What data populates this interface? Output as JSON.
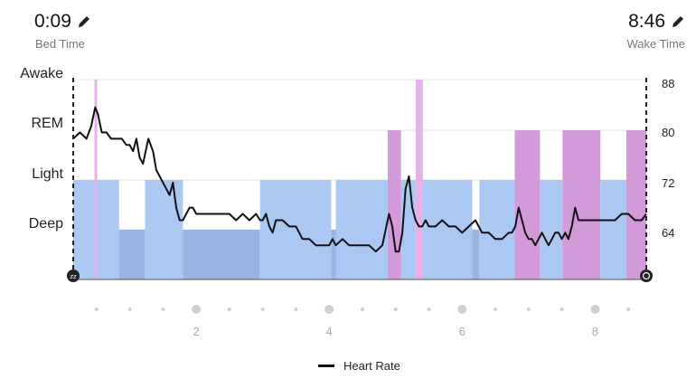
{
  "header": {
    "bed_time": "0:09",
    "bed_label": "Bed Time",
    "wake_time": "8:46",
    "wake_label": "Wake Time",
    "edit_icon": "pencil-icon"
  },
  "chart_data": {
    "type": "area",
    "stages": [
      "Awake",
      "REM",
      "Light",
      "Deep"
    ],
    "hr_ticks": [
      "88",
      "80",
      "72",
      "64"
    ],
    "hr_range": [
      56,
      88
    ],
    "x_range_hours": [
      0.15,
      8.77
    ],
    "x_tick_labels": [
      "2",
      "4",
      "6",
      "8"
    ],
    "x_ticks_hours": [
      2,
      4,
      6,
      8
    ],
    "x_minor_ticks_hours": [
      0.5,
      1.0,
      1.5,
      2.5,
      3.0,
      3.5,
      4.5,
      5.0,
      5.5,
      6.5,
      7.0,
      7.5,
      8.5
    ],
    "stage_colors": {
      "Light": "#aac8f2",
      "Deep": "#9ab4e2",
      "REM": "#d39ad9",
      "Awake": "#e3b2e6"
    },
    "stage_segments": [
      {
        "stage": "Light",
        "start": 0.15,
        "end": 0.84
      },
      {
        "stage": "Awake",
        "start": 0.47,
        "end": 0.51
      },
      {
        "stage": "Deep",
        "start": 0.84,
        "end": 1.23
      },
      {
        "stage": "Light",
        "start": 1.23,
        "end": 1.8
      },
      {
        "stage": "Deep",
        "start": 1.8,
        "end": 2.96
      },
      {
        "stage": "Light",
        "start": 2.96,
        "end": 4.03
      },
      {
        "stage": "Deep",
        "start": 4.03,
        "end": 4.1
      },
      {
        "stage": "Light",
        "start": 4.1,
        "end": 4.88
      },
      {
        "stage": "REM",
        "start": 4.88,
        "end": 5.08
      },
      {
        "stage": "Light",
        "start": 5.08,
        "end": 5.3
      },
      {
        "stage": "Awake",
        "start": 5.3,
        "end": 5.41
      },
      {
        "stage": "Light",
        "start": 5.41,
        "end": 6.15
      },
      {
        "stage": "Deep",
        "start": 6.15,
        "end": 6.26
      },
      {
        "stage": "Light",
        "start": 6.26,
        "end": 6.79
      },
      {
        "stage": "REM",
        "start": 6.79,
        "end": 7.17
      },
      {
        "stage": "Light",
        "start": 7.17,
        "end": 7.51
      },
      {
        "stage": "REM",
        "start": 7.51,
        "end": 8.08
      },
      {
        "stage": "Light",
        "start": 8.08,
        "end": 8.47
      },
      {
        "stage": "REM",
        "start": 8.47,
        "end": 8.77
      }
    ],
    "heart_rate": {
      "x": [
        0.15,
        0.25,
        0.35,
        0.42,
        0.48,
        0.52,
        0.58,
        0.65,
        0.72,
        0.8,
        0.88,
        0.95,
        1.0,
        1.05,
        1.1,
        1.15,
        1.2,
        1.28,
        1.35,
        1.4,
        1.45,
        1.5,
        1.55,
        1.6,
        1.65,
        1.7,
        1.75,
        1.8,
        1.85,
        1.9,
        1.95,
        2.0,
        2.1,
        2.2,
        2.3,
        2.4,
        2.5,
        2.6,
        2.7,
        2.8,
        2.9,
        2.96,
        3.0,
        3.05,
        3.1,
        3.15,
        3.2,
        3.3,
        3.4,
        3.5,
        3.6,
        3.7,
        3.8,
        3.9,
        4.0,
        4.05,
        4.1,
        4.2,
        4.3,
        4.4,
        4.5,
        4.6,
        4.7,
        4.8,
        4.9,
        4.95,
        5.0,
        5.05,
        5.1,
        5.15,
        5.2,
        5.25,
        5.3,
        5.35,
        5.4,
        5.45,
        5.5,
        5.6,
        5.7,
        5.8,
        5.9,
        6.0,
        6.1,
        6.2,
        6.3,
        6.4,
        6.5,
        6.6,
        6.7,
        6.75,
        6.8,
        6.85,
        6.9,
        6.95,
        7.0,
        7.05,
        7.1,
        7.15,
        7.2,
        7.25,
        7.3,
        7.35,
        7.4,
        7.45,
        7.5,
        7.55,
        7.6,
        7.65,
        7.7,
        7.75,
        7.8,
        7.9,
        8.0,
        8.1,
        8.2,
        8.3,
        8.4,
        8.5,
        8.6,
        8.7,
        8.77
      ],
      "y": [
        79,
        80,
        79,
        81,
        84,
        83,
        80,
        80,
        79,
        79,
        79,
        78,
        78,
        77,
        79,
        76,
        75,
        79,
        77,
        74,
        73,
        72,
        71,
        70,
        72,
        68,
        66,
        66,
        67,
        68,
        68,
        67,
        67,
        67,
        67,
        67,
        67,
        66,
        67,
        66,
        67,
        66,
        66,
        67,
        65,
        64,
        66,
        66,
        65,
        65,
        63,
        63,
        62,
        62,
        62,
        63,
        62,
        63,
        62,
        62,
        62,
        62,
        61,
        62,
        67,
        65,
        61,
        61,
        64,
        71,
        73,
        68,
        66,
        65,
        65,
        66,
        65,
        65,
        66,
        65,
        65,
        64,
        65,
        66,
        64,
        64,
        63,
        63,
        64,
        64,
        65,
        68,
        66,
        64,
        63,
        63,
        62,
        63,
        64,
        63,
        62,
        63,
        64,
        64,
        63,
        64,
        63,
        65,
        68,
        66,
        66,
        66,
        66,
        66,
        66,
        66,
        67,
        67,
        66,
        66,
        67
      ]
    },
    "legend": [
      "Heart Rate"
    ],
    "grid": true
  }
}
